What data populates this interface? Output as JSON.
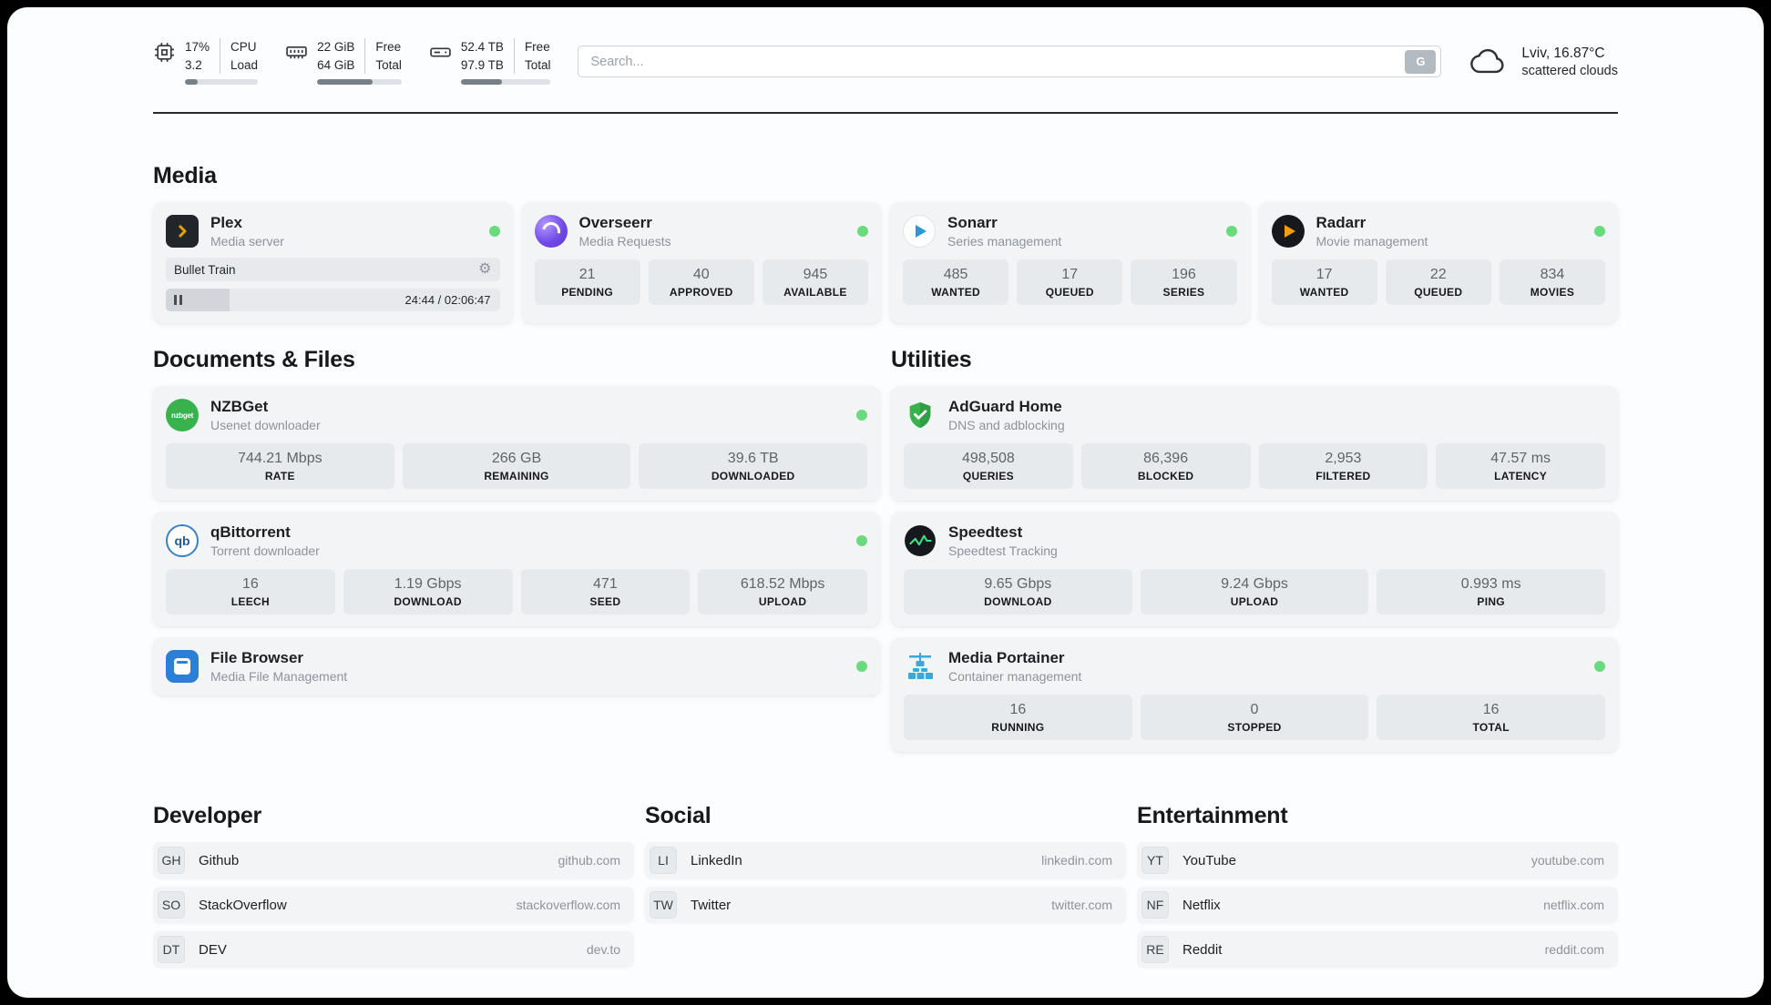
{
  "colors": {
    "status_online": "#69db7c",
    "plex_amber": "#e5a00d",
    "adguard_green": "#37b24d",
    "portainer_blue": "#3aa7dd",
    "progress_fill": "#787f87"
  },
  "icons": {
    "gear": "⚙",
    "nzbget_text": "nzbget",
    "qbittorrent_text": "qb"
  },
  "topbar": {
    "cpu": {
      "percent": "17%",
      "load": "3.2",
      "label_top": "CPU",
      "label_bottom": "Load",
      "progress": 17
    },
    "ram": {
      "free": "22 GiB",
      "total": "64 GiB",
      "label_top": "Free",
      "label_bottom": "Total",
      "progress": 66
    },
    "disk": {
      "free": "52.4 TB",
      "total": "97.9 TB",
      "label_top": "Free",
      "label_bottom": "Total",
      "progress": 46
    },
    "search": {
      "placeholder": "Search...",
      "engine_button": "G"
    },
    "weather": {
      "location": "Lviv, 16.87°C",
      "condition": "scattered clouds"
    }
  },
  "media": {
    "title": "Media",
    "plex": {
      "name": "Plex",
      "subtitle": "Media server",
      "now_playing": "Bullet Train",
      "time": "24:44 / 02:06:47",
      "progress": 19
    },
    "overseerr": {
      "name": "Overseerr",
      "subtitle": "Media Requests",
      "stats": [
        {
          "value": "21",
          "label": "PENDING"
        },
        {
          "value": "40",
          "label": "APPROVED"
        },
        {
          "value": "945",
          "label": "AVAILABLE"
        }
      ]
    },
    "sonarr": {
      "name": "Sonarr",
      "subtitle": "Series management",
      "stats": [
        {
          "value": "485",
          "label": "WANTED"
        },
        {
          "value": "17",
          "label": "QUEUED"
        },
        {
          "value": "196",
          "label": "SERIES"
        }
      ]
    },
    "radarr": {
      "name": "Radarr",
      "subtitle": "Movie management",
      "stats": [
        {
          "value": "17",
          "label": "WANTED"
        },
        {
          "value": "22",
          "label": "QUEUED"
        },
        {
          "value": "834",
          "label": "MOVIES"
        }
      ]
    }
  },
  "documents": {
    "title": "Documents & Files",
    "nzbget": {
      "name": "NZBGet",
      "subtitle": "Usenet downloader",
      "stats": [
        {
          "value": "744.21 Mbps",
          "label": "RATE"
        },
        {
          "value": "266 GB",
          "label": "REMAINING"
        },
        {
          "value": "39.6 TB",
          "label": "DOWNLOADED"
        }
      ]
    },
    "qbittorrent": {
      "name": "qBittorrent",
      "subtitle": "Torrent downloader",
      "stats": [
        {
          "value": "16",
          "label": "LEECH"
        },
        {
          "value": "1.19 Gbps",
          "label": "DOWNLOAD"
        },
        {
          "value": "471",
          "label": "SEED"
        },
        {
          "value": "618.52 Mbps",
          "label": "UPLOAD"
        }
      ]
    },
    "filebrowser": {
      "name": "File Browser",
      "subtitle": "Media File Management"
    }
  },
  "utilities": {
    "title": "Utilities",
    "adguard": {
      "name": "AdGuard Home",
      "subtitle": "DNS and adblocking",
      "stats": [
        {
          "value": "498,508",
          "label": "QUERIES"
        },
        {
          "value": "86,396",
          "label": "BLOCKED"
        },
        {
          "value": "2,953",
          "label": "FILTERED"
        },
        {
          "value": "47.57 ms",
          "label": "LATENCY"
        }
      ]
    },
    "speedtest": {
      "name": "Speedtest",
      "subtitle": "Speedtest Tracking",
      "stats": [
        {
          "value": "9.65 Gbps",
          "label": "DOWNLOAD"
        },
        {
          "value": "9.24 Gbps",
          "label": "UPLOAD"
        },
        {
          "value": "0.993 ms",
          "label": "PING"
        }
      ]
    },
    "portainer": {
      "name": "Media Portainer",
      "subtitle": "Container management",
      "stats": [
        {
          "value": "16",
          "label": "RUNNING"
        },
        {
          "value": "0",
          "label": "STOPPED"
        },
        {
          "value": "16",
          "label": "TOTAL"
        }
      ]
    }
  },
  "bookmarks": {
    "developer": {
      "title": "Developer",
      "items": [
        {
          "abbr": "GH",
          "name": "Github",
          "domain": "github.com"
        },
        {
          "abbr": "SO",
          "name": "StackOverflow",
          "domain": "stackoverflow.com"
        },
        {
          "abbr": "DT",
          "name": "DEV",
          "domain": "dev.to"
        }
      ]
    },
    "social": {
      "title": "Social",
      "items": [
        {
          "abbr": "LI",
          "name": "LinkedIn",
          "domain": "linkedin.com"
        },
        {
          "abbr": "TW",
          "name": "Twitter",
          "domain": "twitter.com"
        }
      ]
    },
    "entertainment": {
      "title": "Entertainment",
      "items": [
        {
          "abbr": "YT",
          "name": "YouTube",
          "domain": "youtube.com"
        },
        {
          "abbr": "NF",
          "name": "Netflix",
          "domain": "netflix.com"
        },
        {
          "abbr": "RE",
          "name": "Reddit",
          "domain": "reddit.com"
        }
      ]
    }
  }
}
